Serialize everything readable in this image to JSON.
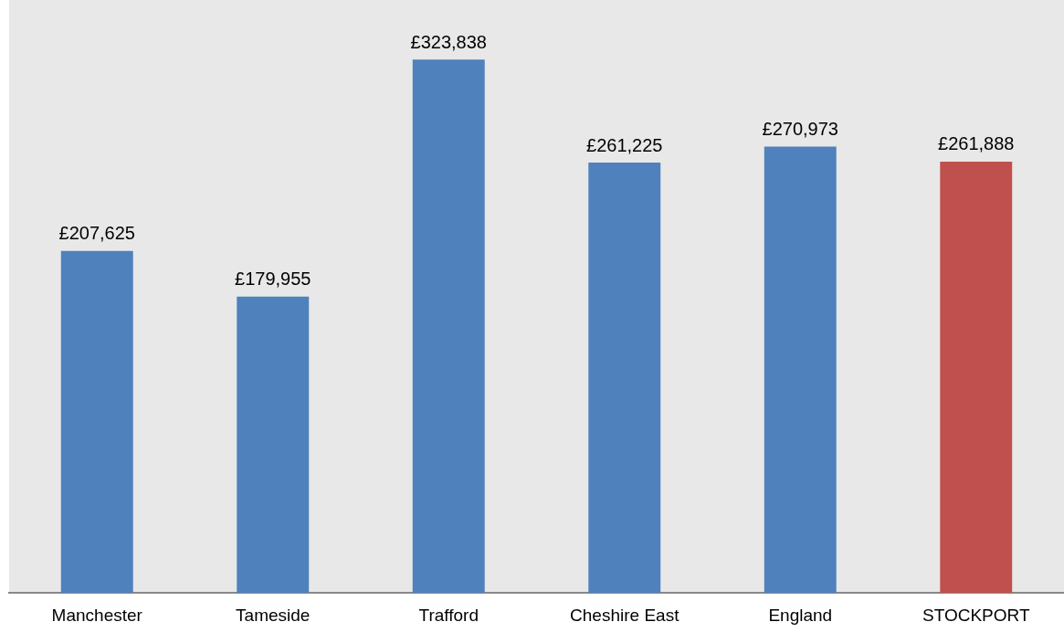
{
  "chart_data": {
    "type": "bar",
    "categories": [
      "Manchester",
      "Tameside",
      "Trafford",
      "Cheshire East",
      "England",
      "STOCKPORT"
    ],
    "values": [
      207625,
      179955,
      323838,
      261225,
      270973,
      261888
    ],
    "colors": [
      "#4f81bd",
      "#4f81bd",
      "#4f81bd",
      "#4f81bd",
      "#4f81bd",
      "#c0504d"
    ],
    "value_labels": [
      "£207,625",
      "£179,955",
      "£323,838",
      "£261,225",
      "£270,973",
      "£261,888"
    ],
    "ylim": [
      0,
      360000
    ],
    "tick_labels": "x",
    "grid": false,
    "legend": false
  }
}
